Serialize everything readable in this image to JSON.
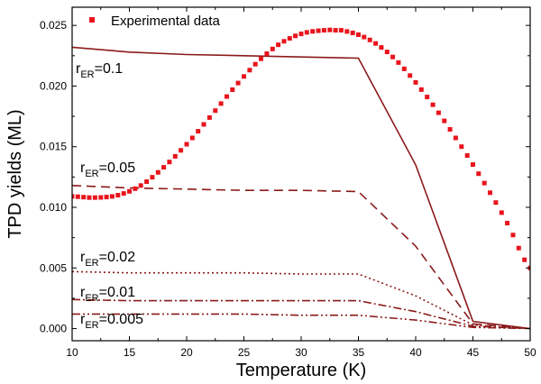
{
  "chart_data": {
    "type": "line",
    "title": "",
    "xlabel": "Temperature (K)",
    "ylabel": "TPD yields (ML)",
    "xlim": [
      10,
      50
    ],
    "ylim": [
      -0.001,
      0.0265
    ],
    "xticks": [
      10,
      15,
      20,
      25,
      30,
      35,
      40,
      45,
      50
    ],
    "yticks": [
      0.0,
      0.005,
      0.01,
      0.015,
      0.02,
      0.025
    ],
    "ytick_labels": [
      "0.000",
      "0.005",
      "0.010",
      "0.015",
      "0.020",
      "0.025"
    ],
    "legend": {
      "position": "top-left",
      "entries": [
        "Experimental data"
      ]
    },
    "experimental": {
      "name": "Experimental data",
      "color": "#e8141c",
      "x": [
        10,
        12,
        14,
        16,
        18,
        20,
        22,
        24,
        26,
        28,
        30,
        32,
        33,
        34,
        36,
        38,
        40,
        42,
        44,
        46,
        48,
        50
      ],
      "y": [
        0.0109,
        0.0108,
        0.011,
        0.0118,
        0.0133,
        0.0152,
        0.0174,
        0.0197,
        0.0218,
        0.0234,
        0.0243,
        0.0246,
        0.0246,
        0.0245,
        0.0238,
        0.0224,
        0.0203,
        0.0178,
        0.015,
        0.012,
        0.0087,
        0.005
      ]
    },
    "series": [
      {
        "name": "r_ER=0.1",
        "style": "solid",
        "x": [
          10,
          15,
          20,
          25,
          30,
          35,
          40,
          45,
          50
        ],
        "y": [
          0.0232,
          0.0228,
          0.0226,
          0.0225,
          0.0224,
          0.0223,
          0.0135,
          0.0006,
          0.0
        ]
      },
      {
        "name": "r_ER=0.05",
        "style": "dash",
        "x": [
          10,
          15,
          20,
          25,
          30,
          35,
          40,
          45,
          50
        ],
        "y": [
          0.0118,
          0.0116,
          0.0115,
          0.0114,
          0.0114,
          0.0113,
          0.0068,
          0.0004,
          0.0
        ]
      },
      {
        "name": "r_ER=0.02",
        "style": "dot",
        "x": [
          10,
          15,
          20,
          25,
          30,
          35,
          40,
          45,
          50
        ],
        "y": [
          0.0047,
          0.0046,
          0.0046,
          0.0046,
          0.0045,
          0.0045,
          0.0027,
          0.0003,
          0.0
        ]
      },
      {
        "name": "r_ER=0.01",
        "style": "dashdot",
        "x": [
          10,
          15,
          20,
          25,
          30,
          35,
          40,
          45,
          50
        ],
        "y": [
          0.0024,
          0.0023,
          0.0023,
          0.0023,
          0.0023,
          0.0023,
          0.0014,
          0.0002,
          0.0
        ]
      },
      {
        "name": "r_ER=0.005",
        "style": "dashdotdot",
        "x": [
          10,
          15,
          20,
          25,
          30,
          35,
          40,
          45,
          50
        ],
        "y": [
          0.0012,
          0.0012,
          0.0012,
          0.0012,
          0.0011,
          0.0011,
          0.0007,
          0.0001,
          0.0
        ]
      }
    ],
    "series_color": "#8b1a1a",
    "annotations": [
      {
        "r": "r",
        "sub": "ER",
        "val": "=0.1"
      },
      {
        "r": "r",
        "sub": "ER",
        "val": "=0.05"
      },
      {
        "r": "r",
        "sub": "ER",
        "val": "=0.02"
      },
      {
        "r": "r",
        "sub": "ER",
        "val": "=0.01"
      },
      {
        "r": "r",
        "sub": "ER",
        "val": "=0.005"
      }
    ]
  }
}
